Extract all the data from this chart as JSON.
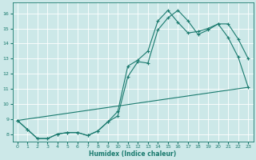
{
  "background_color": "#cce8e8",
  "grid_color": "#ffffff",
  "line_color": "#1a7a6e",
  "xlabel": "Humidex (Indice chaleur)",
  "xlim": [
    -0.5,
    23.5
  ],
  "ylim": [
    7.5,
    16.7
  ],
  "yticks": [
    8,
    9,
    10,
    11,
    12,
    13,
    14,
    15,
    16
  ],
  "xticks": [
    0,
    1,
    2,
    3,
    4,
    5,
    6,
    7,
    8,
    9,
    10,
    11,
    12,
    13,
    14,
    15,
    16,
    17,
    18,
    19,
    20,
    21,
    22,
    23
  ],
  "line1_x": [
    0,
    1,
    2,
    3,
    4,
    5,
    6,
    7,
    8,
    9,
    10,
    11,
    12,
    13,
    14,
    15,
    16,
    17,
    18,
    19,
    20,
    21,
    22,
    23
  ],
  "line1_y": [
    8.9,
    8.3,
    7.7,
    7.7,
    8.0,
    8.1,
    8.1,
    7.9,
    8.2,
    8.8,
    9.2,
    11.8,
    12.8,
    12.7,
    14.9,
    15.7,
    16.2,
    15.5,
    14.6,
    14.9,
    15.3,
    15.3,
    14.3,
    13.0
  ],
  "line2_x": [
    0,
    1,
    2,
    3,
    4,
    5,
    6,
    7,
    8,
    9,
    10,
    11,
    12,
    13,
    14,
    15,
    16,
    17,
    18,
    19,
    20,
    21,
    22,
    23
  ],
  "line2_y": [
    8.9,
    8.3,
    7.7,
    7.7,
    8.0,
    8.1,
    8.1,
    7.9,
    8.2,
    8.8,
    9.5,
    12.5,
    12.9,
    13.5,
    15.5,
    16.2,
    15.4,
    14.7,
    14.8,
    15.0,
    15.3,
    14.4,
    13.1,
    11.1
  ],
  "line3_x": [
    0,
    23
  ],
  "line3_y": [
    8.9,
    11.1
  ],
  "xlabel_fontsize": 5.5,
  "ylabel_fontsize": 5.5,
  "tick_fontsize": 4.5,
  "linewidth": 0.8,
  "marker_size": 2.5
}
